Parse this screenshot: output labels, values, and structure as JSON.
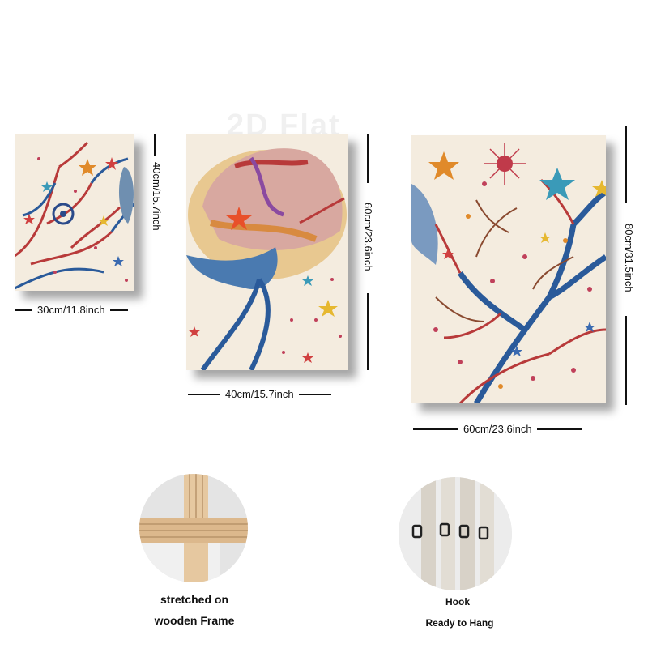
{
  "watermark": "2D Flat",
  "panels": [
    {
      "width_label": "30cm/11.8inch",
      "height_label": "40cm/15.7inch"
    },
    {
      "width_label": "40cm/15.7inch",
      "height_label": "60cm/23.6inch"
    },
    {
      "width_label": "60cm/23.6inch",
      "height_label": "80cm/31.5inch"
    }
  ],
  "features": {
    "frame": {
      "line1": "stretched on",
      "line2": "wooden Frame"
    },
    "hook": {
      "line1": "Hook",
      "line2": "Ready to Hang"
    }
  },
  "colors": {
    "canvas": "#f4ecdf",
    "branch_blue": "#2a5a9a",
    "branch_red": "#b83a3a",
    "star_orange": "#e08a2a",
    "star_teal": "#3a9ab8"
  }
}
